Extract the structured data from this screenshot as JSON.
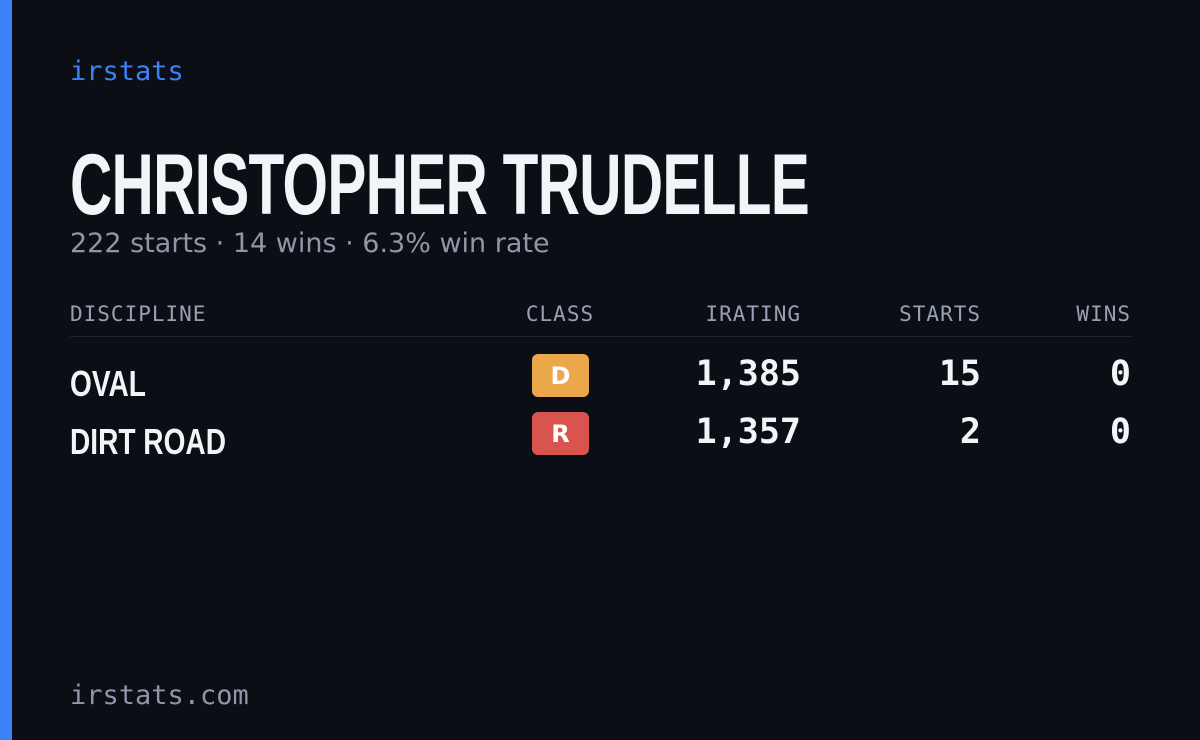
{
  "brand": "irstats",
  "profile": {
    "name": "CHRISTOPHER TRUDELLE",
    "summary": "222 starts · 14 wins · 6.3% win rate"
  },
  "table": {
    "headers": [
      "DISCIPLINE",
      "CLASS",
      "IRATING",
      "STARTS",
      "WINS"
    ],
    "rows": [
      {
        "discipline": "OVAL",
        "class": "D",
        "class_color": "#eaa84b",
        "irating": "1,385",
        "starts": "15",
        "wins": "0"
      },
      {
        "discipline": "DIRT ROAD",
        "class": "R",
        "class_color": "#d9544f",
        "irating": "1,357",
        "starts": "2",
        "wins": "0"
      }
    ]
  },
  "footer": "irstats.com"
}
